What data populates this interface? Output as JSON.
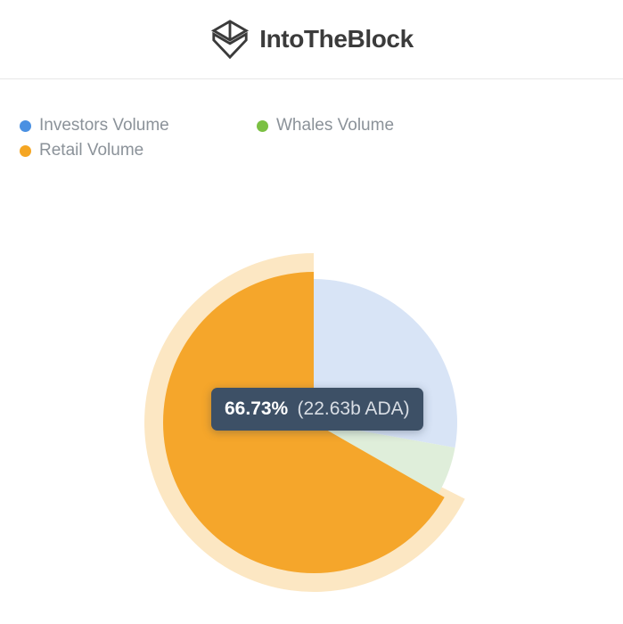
{
  "header": {
    "brand": "IntoTheBlock"
  },
  "legend": {
    "items": [
      {
        "label": "Investors Volume",
        "color": "#4a90e2"
      },
      {
        "label": "Whales Volume",
        "color": "#7bc043"
      },
      {
        "label": "Retail Volume",
        "color": "#f5a623"
      }
    ]
  },
  "tooltip": {
    "percent": "66.73%",
    "detail": "(22.63b ADA)"
  },
  "chart_data": {
    "type": "pie",
    "title": "",
    "legend_position": "top-left",
    "units": "ADA",
    "slices": [
      {
        "label": "Investors Volume",
        "percent": 27.8,
        "legend_color": "#4a90e2",
        "fill": "#d8e4f6",
        "state": "dimmed"
      },
      {
        "label": "Whales Volume",
        "percent": 5.47,
        "legend_color": "#7bc043",
        "fill": "#dfeeda",
        "state": "dimmed"
      },
      {
        "label": "Retail Volume",
        "percent": 66.73,
        "legend_color": "#f5a623",
        "fill": "#f5a62b",
        "state": "hovered",
        "amount": "22.63b ADA",
        "tooltip": "66.73% (22.63b ADA)"
      }
    ],
    "hover_halo_color": "rgba(245,166,35,0.27)",
    "notes": "Retail slice hovered: enlarged radius with pale halo ring; other slices dimmed"
  }
}
